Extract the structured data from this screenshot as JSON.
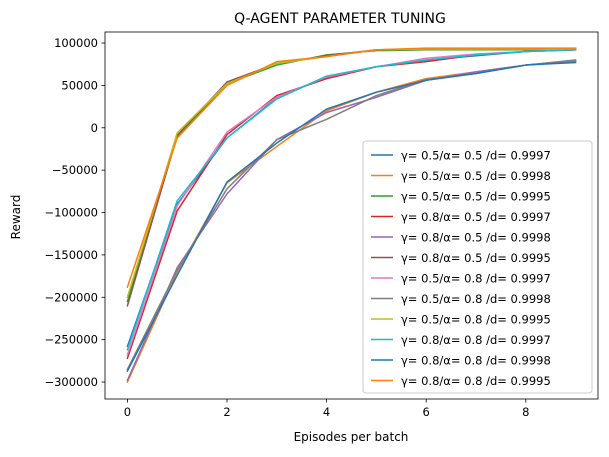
{
  "chart_data": {
    "type": "line",
    "title": "Q-AGENT PARAMETER TUNING",
    "xlabel": "Episodes per batch",
    "ylabel": "Reward",
    "xlim": [
      -0.45,
      9.45
    ],
    "ylim": [
      -320000,
      113000
    ],
    "xticks": [
      0,
      2,
      4,
      6,
      8
    ],
    "xtick_labels": [
      "0",
      "2",
      "4",
      "6",
      "8"
    ],
    "yticks": [
      100000,
      50000,
      0,
      -50000,
      -100000,
      -150000,
      -200000,
      -250000,
      -300000
    ],
    "ytick_labels": [
      "100000",
      "50000",
      "0",
      "−50000",
      "−100000",
      "−150000",
      "−200000",
      "−250000",
      "−300000"
    ],
    "grid": false,
    "legend_position": "lower right",
    "x": [
      0,
      1,
      2,
      3,
      4,
      5,
      6,
      7,
      8,
      9
    ],
    "series": [
      {
        "name": "γ= 0.5/α= 0.5 /d= 0.9997",
        "color": "#1f77b4",
        "values": [
          -258000,
          -90000,
          -12000,
          35000,
          60000,
          72000,
          80000,
          85000,
          90000,
          92000
        ]
      },
      {
        "name": "γ= 0.5/α= 0.5 /d= 0.9998",
        "color": "#ff7f0e",
        "values": [
          -300000,
          -170000,
          -65000,
          -22000,
          20000,
          42000,
          58000,
          66000,
          74000,
          79000
        ]
      },
      {
        "name": "γ= 0.5/α= 0.5 /d= 0.9995",
        "color": "#2ca02c",
        "values": [
          -205000,
          -10000,
          52000,
          74000,
          86000,
          91000,
          92000,
          92000,
          92000,
          92000
        ]
      },
      {
        "name": "γ= 0.8/α= 0.5 /d= 0.9997",
        "color": "#d62728",
        "values": [
          -272000,
          -98000,
          -8000,
          38000,
          58000,
          72000,
          78000,
          86000,
          90000,
          92000
        ]
      },
      {
        "name": "γ= 0.8/α= 0.5 /d= 0.9998",
        "color": "#9467bd",
        "values": [
          -298000,
          -165000,
          -78000,
          -14000,
          18000,
          36000,
          56000,
          66000,
          74000,
          78000
        ]
      },
      {
        "name": "γ= 0.8/α= 0.5 /d= 0.9995",
        "color": "#8c564b",
        "values": [
          -210000,
          -9000,
          54000,
          76000,
          85000,
          92000,
          93000,
          93000,
          93000,
          93000
        ]
      },
      {
        "name": "γ= 0.5/α= 0.8 /d= 0.9997",
        "color": "#e377c2",
        "values": [
          -268000,
          -92000,
          -5000,
          36000,
          60000,
          72000,
          82000,
          87000,
          90000,
          93000
        ]
      },
      {
        "name": "γ= 0.5/α= 0.8 /d= 0.9998",
        "color": "#7f7f7f",
        "values": [
          -285000,
          -168000,
          -72000,
          -14000,
          10000,
          38000,
          57000,
          64000,
          74000,
          80000
        ]
      },
      {
        "name": "γ= 0.5/α= 0.8 /d= 0.9995",
        "color": "#bcbd22",
        "values": [
          -200000,
          -6000,
          52000,
          76000,
          84000,
          92000,
          93000,
          93000,
          93000,
          93000
        ]
      },
      {
        "name": "γ= 0.8/α= 0.8 /d= 0.9997",
        "color": "#17becf",
        "values": [
          -262000,
          -86000,
          -12000,
          34000,
          61000,
          72000,
          80000,
          86000,
          90000,
          92000
        ]
      },
      {
        "name": "γ= 0.8/α= 0.8 /d= 0.9998",
        "color": "#1f77b4",
        "values": [
          -287000,
          -174000,
          -64000,
          -18000,
          22000,
          42000,
          56000,
          64000,
          74000,
          77000
        ]
      },
      {
        "name": "γ= 0.8/α= 0.8 /d= 0.9995",
        "color": "#ff7f0e",
        "values": [
          -188000,
          -12000,
          50000,
          78000,
          84000,
          92000,
          94000,
          94000,
          94000,
          94000
        ]
      }
    ]
  }
}
